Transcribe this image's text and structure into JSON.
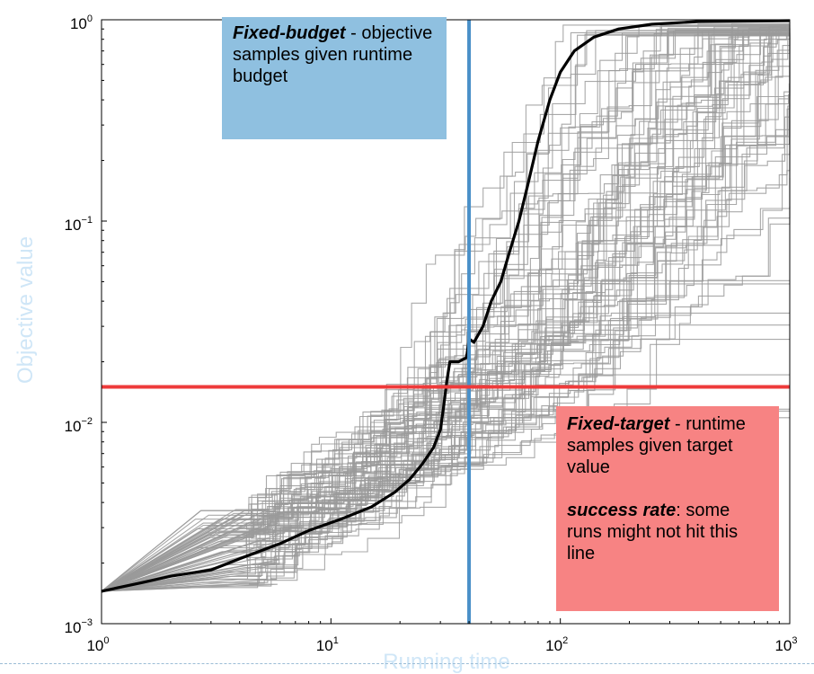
{
  "chart_data": {
    "type": "line",
    "xlabel": "Running time",
    "ylabel": "Objective value",
    "x_scale": "log",
    "y_scale": "log",
    "xlim": [
      1,
      1000
    ],
    "ylim": [
      0.001,
      1
    ],
    "x_ticks": [
      {
        "base": "10",
        "exp": "0",
        "value": 1
      },
      {
        "base": "10",
        "exp": "1",
        "value": 10
      },
      {
        "base": "10",
        "exp": "2",
        "value": 100
      },
      {
        "base": "10",
        "exp": "3",
        "value": 1000
      }
    ],
    "y_ticks": [
      {
        "base": "10",
        "exp": "0",
        "value": 1
      },
      {
        "base": "10",
        "exp": "−1",
        "value": 0.1
      },
      {
        "base": "10",
        "exp": "−2",
        "value": 0.01
      },
      {
        "base": "10",
        "exp": "−3",
        "value": 0.001
      }
    ],
    "grid": false,
    "median_run": [
      [
        1,
        0.00145
      ],
      [
        1.5,
        0.0016
      ],
      [
        2,
        0.00172
      ],
      [
        3,
        0.00185
      ],
      [
        4,
        0.0021
      ],
      [
        6,
        0.0025
      ],
      [
        8,
        0.0029
      ],
      [
        11,
        0.0033
      ],
      [
        15,
        0.0038
      ],
      [
        19,
        0.0045
      ],
      [
        22,
        0.0052
      ],
      [
        25,
        0.0062
      ],
      [
        28,
        0.0075
      ],
      [
        30,
        0.0092
      ],
      [
        31,
        0.012
      ],
      [
        32,
        0.016
      ],
      [
        33,
        0.02
      ],
      [
        36,
        0.02
      ],
      [
        39,
        0.021
      ],
      [
        40,
        0.026
      ],
      [
        42,
        0.025
      ],
      [
        46,
        0.03
      ],
      [
        50,
        0.04
      ],
      [
        55,
        0.05
      ],
      [
        60,
        0.07
      ],
      [
        66,
        0.1
      ],
      [
        72,
        0.15
      ],
      [
        80,
        0.25
      ],
      [
        90,
        0.4
      ],
      [
        100,
        0.55
      ],
      [
        115,
        0.7
      ],
      [
        140,
        0.82
      ],
      [
        180,
        0.9
      ],
      [
        250,
        0.95
      ],
      [
        400,
        0.98
      ],
      [
        1000,
        0.99
      ]
    ],
    "run_count": 80,
    "fixed_budget_x": 40,
    "fixed_target_y": 0.015,
    "colors": {
      "runs": "#9a9a9a",
      "median": "#000000",
      "fixed_budget_line": "#4a90c8",
      "fixed_target_line": "#ee3a3a",
      "fixed_budget_box": "#8fc0e0",
      "fixed_target_box": "#f78383"
    }
  },
  "annotations": {
    "fixed_budget": {
      "bold": "Fixed-budget",
      "text": " - objective samples given runtime budget"
    },
    "fixed_target": {
      "bold": "Fixed-target",
      "text": " - runtime samples given target value",
      "bold2": "success rate",
      "text2": ": some runs might not hit this line"
    }
  }
}
